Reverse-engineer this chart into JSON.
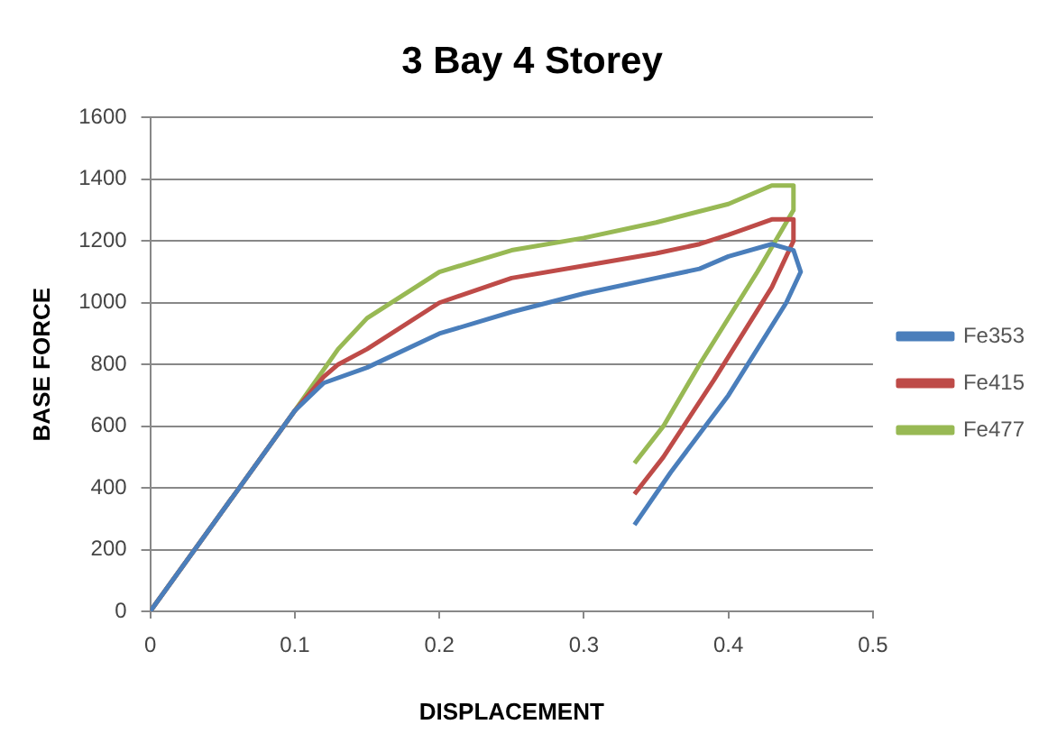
{
  "chart_data": {
    "type": "line",
    "title": "3 Bay 4 Storey",
    "xlabel": "DISPLACEMENT",
    "ylabel": "BASE FORCE",
    "xlim": [
      0,
      0.5
    ],
    "xticks": [
      0,
      0.1,
      0.2,
      0.3,
      0.4,
      0.5
    ],
    "ylim": [
      0,
      1600
    ],
    "yticks": [
      0,
      200,
      400,
      600,
      800,
      1000,
      1200,
      1400,
      1600
    ],
    "grid": "y",
    "legend": "right",
    "marker": "none",
    "line_style": "solid",
    "series": [
      {
        "name": "Fe353",
        "color": "#4a7ebb",
        "x": [
          0,
          0.05,
          0.1,
          0.12,
          0.15,
          0.2,
          0.25,
          0.3,
          0.35,
          0.38,
          0.4,
          0.43,
          0.445,
          0.45,
          0.44,
          0.4,
          0.36,
          0.335
        ],
        "values": [
          0,
          325,
          650,
          740,
          790,
          900,
          970,
          1030,
          1080,
          1110,
          1150,
          1190,
          1170,
          1100,
          1000,
          700,
          450,
          280
        ]
      },
      {
        "name": "Fe415",
        "color": "#be4b48",
        "x": [
          0,
          0.05,
          0.1,
          0.12,
          0.13,
          0.15,
          0.2,
          0.25,
          0.3,
          0.35,
          0.38,
          0.4,
          0.43,
          0.445,
          0.445,
          0.43,
          0.39,
          0.355,
          0.335
        ],
        "values": [
          0,
          325,
          650,
          760,
          800,
          850,
          1000,
          1080,
          1120,
          1160,
          1190,
          1220,
          1270,
          1270,
          1200,
          1050,
          750,
          500,
          380
        ]
      },
      {
        "name": "Fe477",
        "color": "#98b954",
        "x": [
          0,
          0.05,
          0.1,
          0.13,
          0.15,
          0.2,
          0.25,
          0.3,
          0.35,
          0.4,
          0.43,
          0.445,
          0.445,
          0.42,
          0.38,
          0.355,
          0.335
        ],
        "values": [
          0,
          325,
          650,
          850,
          950,
          1100,
          1170,
          1210,
          1260,
          1320,
          1380,
          1380,
          1300,
          1100,
          800,
          600,
          480
        ]
      }
    ]
  }
}
